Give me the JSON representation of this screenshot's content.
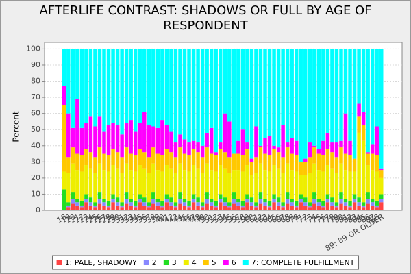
{
  "chart_data": {
    "type": "stacked-bar",
    "title": "AFTERLIFE CONTRAST: SHADOWS OR FULL BY AGE OF RESPONDENT",
    "y_label": "Percent",
    "categories": [
      "18",
      "19",
      "20",
      "21",
      "22",
      "23",
      "24",
      "25",
      "26",
      "27",
      "28",
      "29",
      "30",
      "31",
      "32",
      "33",
      "34",
      "35",
      "36",
      "37",
      "38",
      "39",
      "40",
      "41",
      "42",
      "43",
      "44",
      "45",
      "46",
      "47",
      "48",
      "49",
      "50",
      "51",
      "52",
      "53",
      "54",
      "55",
      "56",
      "57",
      "58",
      "59",
      "60",
      "61",
      "62",
      "63",
      "64",
      "65",
      "66",
      "67",
      "68",
      "69",
      "70",
      "71",
      "72",
      "73",
      "74",
      "75",
      "76",
      "77",
      "78",
      "79",
      "80",
      "81",
      "82",
      "83",
      "84",
      "85",
      "86",
      "87",
      "88",
      "89: 89 OR OLDER"
    ],
    "series": [
      {
        "name": "1: PALE, SHADOWY",
        "color": "#ff4444",
        "values": [
          0,
          2,
          4,
          3,
          2,
          5,
          3,
          2,
          4,
          3,
          2,
          5,
          3,
          2,
          4,
          3,
          2,
          5,
          3,
          2,
          4,
          3,
          2,
          5,
          3,
          2,
          4,
          3,
          2,
          5,
          3,
          2,
          4,
          3,
          2,
          5,
          3,
          2,
          4,
          3,
          2,
          5,
          3,
          2,
          4,
          3,
          2,
          5,
          3,
          2,
          4,
          3,
          2,
          5,
          3,
          2,
          4,
          3,
          2,
          5,
          3,
          2,
          4,
          3,
          2,
          5,
          3,
          2,
          4,
          3,
          2,
          5
        ]
      },
      {
        "name": "2",
        "color": "#8888ff",
        "values": [
          0,
          1,
          3,
          2,
          1,
          2,
          2,
          1,
          3,
          2,
          1,
          2,
          2,
          1,
          3,
          2,
          1,
          2,
          2,
          1,
          3,
          2,
          1,
          2,
          2,
          1,
          3,
          2,
          1,
          2,
          2,
          1,
          3,
          2,
          1,
          2,
          2,
          1,
          3,
          2,
          1,
          2,
          2,
          1,
          3,
          2,
          1,
          2,
          2,
          1,
          3,
          2,
          1,
          2,
          2,
          1,
          3,
          2,
          1,
          2,
          2,
          1,
          3,
          2,
          1,
          2,
          2,
          1,
          3,
          2,
          1,
          2
        ]
      },
      {
        "name": "3",
        "color": "#22dd22",
        "values": [
          13,
          2,
          4,
          2,
          3,
          3,
          3,
          2,
          4,
          2,
          3,
          3,
          3,
          2,
          4,
          2,
          3,
          3,
          3,
          2,
          4,
          2,
          3,
          3,
          3,
          2,
          4,
          2,
          3,
          3,
          3,
          2,
          4,
          2,
          3,
          3,
          3,
          2,
          4,
          2,
          3,
          3,
          3,
          2,
          4,
          2,
          3,
          3,
          3,
          2,
          4,
          2,
          3,
          3,
          3,
          2,
          4,
          2,
          3,
          3,
          3,
          2,
          4,
          2,
          3,
          3,
          3,
          2,
          4,
          2,
          3,
          3
        ]
      },
      {
        "name": "4",
        "color": "#eeee00",
        "values": [
          11,
          18,
          18,
          18,
          18,
          18,
          18,
          18,
          18,
          18,
          18,
          18,
          18,
          18,
          18,
          18,
          18,
          18,
          18,
          18,
          18,
          18,
          18,
          18,
          18,
          18,
          18,
          18,
          18,
          18,
          18,
          18,
          18,
          18,
          18,
          18,
          18,
          18,
          14,
          18,
          18,
          18,
          14,
          18,
          18,
          18,
          18,
          18,
          18,
          18,
          18,
          18,
          18,
          12,
          14,
          18,
          18,
          18,
          18,
          18,
          18,
          18,
          18,
          18,
          18,
          14,
          40,
          38,
          17,
          18,
          18,
          10
        ]
      },
      {
        "name": "5",
        "color": "#ffc800",
        "values": [
          41,
          10,
          10,
          10,
          10,
          10,
          10,
          10,
          10,
          10,
          10,
          10,
          10,
          10,
          10,
          10,
          10,
          10,
          10,
          10,
          10,
          10,
          10,
          10,
          10,
          10,
          10,
          10,
          10,
          10,
          10,
          10,
          10,
          10,
          10,
          10,
          10,
          10,
          10,
          10,
          10,
          10,
          8,
          10,
          10,
          10,
          10,
          10,
          10,
          10,
          10,
          10,
          10,
          8,
          8,
          10,
          10,
          10,
          10,
          10,
          10,
          10,
          10,
          10,
          10,
          8,
          10,
          10,
          7,
          10,
          10,
          5
        ]
      },
      {
        "name": "6",
        "color": "#ff00ff",
        "values": [
          12,
          27,
          12,
          34,
          17,
          16,
          22,
          19,
          19,
          14,
          19,
          16,
          17,
          14,
          15,
          21,
          15,
          16,
          25,
          20,
          13,
          16,
          22,
          15,
          13,
          9,
          8,
          9,
          8,
          5,
          6,
          7,
          9,
          16,
          2,
          4,
          24,
          22,
          0,
          8,
          16,
          4,
          2,
          19,
          1,
          10,
          12,
          2,
          3,
          20,
          3,
          10,
          9,
          0,
          2,
          9,
          1,
          3,
          9,
          10,
          6,
          9,
          4,
          25,
          9,
          0,
          8,
          8,
          1,
          6,
          18,
          1
        ]
      },
      {
        "name": "7: COMPLETE FULFILLMENT",
        "color": "#00ffff",
        "values": [
          23,
          40,
          49,
          31,
          49,
          46,
          42,
          48,
          42,
          51,
          47,
          46,
          47,
          53,
          46,
          44,
          51,
          46,
          39,
          47,
          48,
          49,
          44,
          47,
          51,
          58,
          53,
          56,
          58,
          57,
          58,
          60,
          52,
          49,
          64,
          58,
          40,
          45,
          65,
          57,
          50,
          58,
          68,
          48,
          60,
          55,
          54,
          60,
          61,
          47,
          58,
          55,
          57,
          70,
          68,
          58,
          60,
          62,
          57,
          52,
          58,
          58,
          57,
          40,
          57,
          68,
          34,
          39,
          64,
          59,
          48,
          74
        ]
      }
    ],
    "ylim": [
      0,
      104
    ],
    "yticks": [
      0,
      10,
      20,
      30,
      40,
      50,
      60,
      70,
      80,
      90,
      100
    ],
    "grid": true,
    "legend": "bottom"
  }
}
